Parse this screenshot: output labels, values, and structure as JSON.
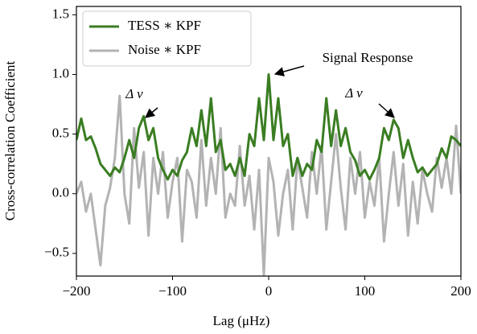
{
  "chart_data": {
    "type": "line",
    "xlabel": "Lag (μHz)",
    "ylabel": "Cross-correlation Coefficient",
    "x": [
      -200,
      -195,
      -190,
      -185,
      -180,
      -175,
      -170,
      -165,
      -160,
      -155,
      -150,
      -145,
      -140,
      -135,
      -130,
      -125,
      -120,
      -115,
      -110,
      -105,
      -100,
      -95,
      -90,
      -85,
      -80,
      -75,
      -70,
      -65,
      -60,
      -55,
      -50,
      -45,
      -40,
      -35,
      -30,
      -25,
      -20,
      -15,
      -10,
      -5,
      0,
      5,
      10,
      15,
      20,
      25,
      30,
      35,
      40,
      45,
      50,
      55,
      60,
      65,
      70,
      75,
      80,
      85,
      90,
      95,
      100,
      105,
      110,
      115,
      120,
      125,
      130,
      135,
      140,
      145,
      150,
      155,
      160,
      165,
      170,
      175,
      180,
      185,
      190,
      195,
      200
    ],
    "series": [
      {
        "name": "Noise ∗ KPF",
        "color": "#b3b3b3",
        "values": [
          0.0,
          0.1,
          -0.15,
          0.0,
          -0.3,
          -0.6,
          -0.1,
          0.05,
          0.3,
          0.82,
          0.0,
          -0.25,
          0.55,
          0.05,
          0.35,
          -0.35,
          0.3,
          0.0,
          0.35,
          -0.2,
          0.1,
          0.3,
          -0.4,
          0.2,
          0.1,
          -0.2,
          0.45,
          -0.1,
          0.3,
          0.0,
          0.55,
          -0.2,
          0.0,
          -0.1,
          0.4,
          -0.1,
          0.15,
          -0.3,
          0.2,
          -0.68,
          0.3,
          0.1,
          -0.35,
          0.0,
          0.2,
          -0.3,
          0.3,
          0.05,
          -0.2,
          0.35,
          0.0,
          0.4,
          -0.3,
          0.1,
          0.5,
          0.05,
          -0.3,
          0.3,
          0.0,
          0.35,
          -0.2,
          0.1,
          -0.1,
          0.3,
          -0.4,
          0.0,
          0.35,
          -0.1,
          0.25,
          -0.35,
          0.1,
          -0.25,
          0.2,
          0.0,
          -0.15,
          0.3,
          0.05,
          0.3,
          0.0,
          0.57,
          0.0
        ]
      },
      {
        "name": "TESS ∗ KPF",
        "color": "#3a7d22",
        "values": [
          0.45,
          0.63,
          0.45,
          0.48,
          0.38,
          0.25,
          0.2,
          0.15,
          0.22,
          0.18,
          0.3,
          0.45,
          0.3,
          0.55,
          0.65,
          0.45,
          0.55,
          0.3,
          0.2,
          0.12,
          0.2,
          0.15,
          0.28,
          0.35,
          0.55,
          0.4,
          0.7,
          0.4,
          0.8,
          0.35,
          0.45,
          0.2,
          0.25,
          0.15,
          0.3,
          0.15,
          0.5,
          0.4,
          0.8,
          0.45,
          1.0,
          0.45,
          0.8,
          0.4,
          0.5,
          0.15,
          0.3,
          0.15,
          0.25,
          0.2,
          0.45,
          0.35,
          0.8,
          0.4,
          0.7,
          0.4,
          0.55,
          0.35,
          0.28,
          0.15,
          0.2,
          0.12,
          0.2,
          0.3,
          0.55,
          0.45,
          0.62,
          0.55,
          0.3,
          0.45,
          0.3,
          0.18,
          0.22,
          0.15,
          0.2,
          0.25,
          0.38,
          0.3,
          0.48,
          0.45,
          0.4
        ]
      }
    ],
    "xlim": [
      -200,
      200
    ],
    "xticks": [
      {
        "value": -200,
        "label": "−200"
      },
      {
        "value": -100,
        "label": "−100"
      },
      0,
      100,
      200
    ],
    "ylim": [
      -0.69,
      1.57
    ],
    "yticks": [
      {
        "value": -0.5,
        "label": "−0.5"
      },
      {
        "value": 0.0,
        "label": "0.0"
      },
      {
        "value": 0.5,
        "label": "0.5"
      },
      {
        "value": 1.0,
        "label": "1.0"
      },
      {
        "value": 1.5,
        "label": "1.5"
      }
    ],
    "legend": "upper left",
    "annotations": [
      "Signal Response",
      "Δ ν",
      "Δ ν"
    ]
  }
}
